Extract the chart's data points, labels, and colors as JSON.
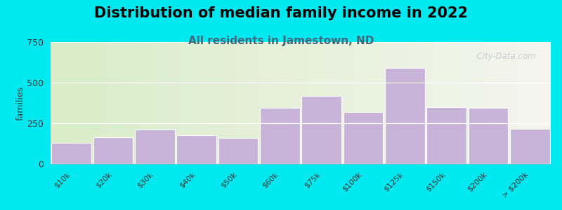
{
  "title": "Distribution of median family income in 2022",
  "subtitle": "All residents in Jamestown, ND",
  "categories": [
    "$10k",
    "$20k",
    "$30k",
    "$40k",
    "$50k",
    "$60k",
    "$75k",
    "$100k",
    "$125k",
    "$150k",
    "$200k",
    "> $200k"
  ],
  "values": [
    130,
    165,
    210,
    175,
    160,
    345,
    420,
    320,
    590,
    350,
    345,
    215
  ],
  "bar_color": "#c8b4d8",
  "bar_edge_color": "#ffffff",
  "background_color": "#00e8f0",
  "plot_bg_left": "#d8edc8",
  "plot_bg_right": "#f5f5ee",
  "ylabel": "families",
  "ylim": [
    0,
    750
  ],
  "yticks": [
    0,
    250,
    500,
    750
  ],
  "title_fontsize": 15,
  "subtitle_fontsize": 11,
  "subtitle_color": "#446677",
  "watermark_text": "  City-Data.com",
  "watermark_color": "#c0c8cc"
}
